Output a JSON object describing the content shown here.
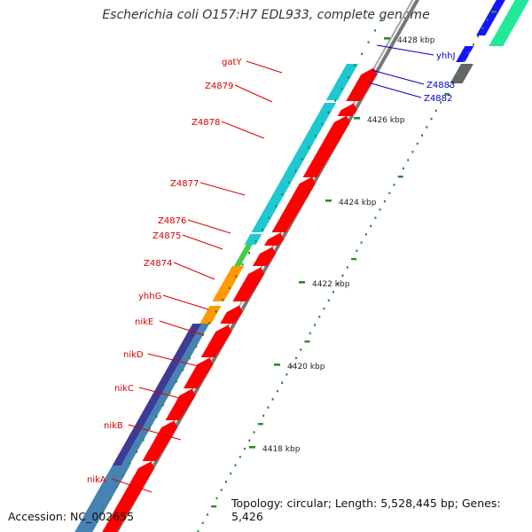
{
  "title": "Escherichia coli O157:H7 EDL933, complete genome",
  "footer": {
    "accession": "Accession: NC_002655",
    "summary": "Topology: circular; Length: 5,528,445 bp; Genes: 5,426"
  },
  "colors": {
    "background": "#ffffff",
    "backbone": "#888888",
    "tick": "#2a8a2a",
    "red_label": "#d80000",
    "blue_label": "#0000cc",
    "gene_red": "#ff0000",
    "gene_blue": "#1414ff",
    "gene_gray": "#666666",
    "gene_cyan": "#1ec8d2",
    "gene_green": "#44cc44",
    "gene_orange": "#ff9a00",
    "gene_navy": "#3c3c96",
    "gene_steel": "#4682b4",
    "gene_mint": "#22e89a"
  },
  "scale": {
    "unit": "kbp",
    "ticks": [
      {
        "label": "4418 kbp"
      },
      {
        "label": "4420 kbp"
      },
      {
        "label": "4422 kbp"
      },
      {
        "label": "4424 kbp"
      },
      {
        "label": "4426 kbp"
      },
      {
        "label": "4428 kbp"
      }
    ]
  },
  "genes_left": [
    {
      "label": "gatY"
    },
    {
      "label": "Z4879"
    },
    {
      "label": "Z4878"
    },
    {
      "label": "Z4877"
    },
    {
      "label": "Z4876"
    },
    {
      "label": "Z4875"
    },
    {
      "label": "Z4874"
    },
    {
      "label": "yhhG"
    },
    {
      "label": "nikE"
    },
    {
      "label": "nikD"
    },
    {
      "label": "nikC"
    },
    {
      "label": "nikB"
    },
    {
      "label": "nikA"
    }
  ],
  "genes_right": [
    {
      "label": "yhhJ"
    },
    {
      "label": "Z4883"
    },
    {
      "label": "Z4882"
    }
  ]
}
